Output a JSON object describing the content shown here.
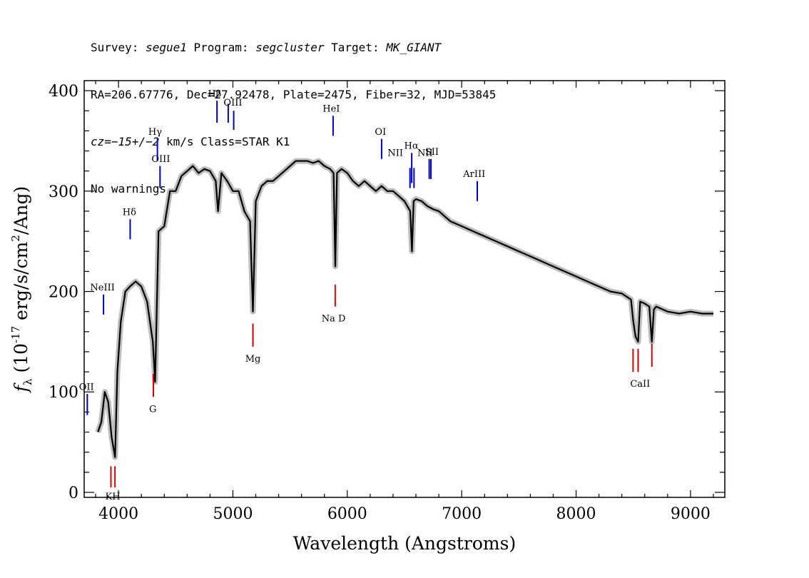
{
  "header": {
    "line1_parts": [
      "Survey: ",
      "segue1",
      " Program: ",
      "segcluster",
      " Target: ",
      "MK_GIANT"
    ],
    "line2": "RA=206.67776, Dec=27.92478, Plate=2475, Fiber=32, MJD=53845",
    "line3_parts": [
      "cz=",
      "−15+/−2",
      " km/s Class=STAR K1"
    ],
    "line4": "No warnings."
  },
  "chart_data": {
    "type": "line",
    "xlabel": "Wavelength (Angstroms)",
    "ylabel": "f_λ (10^-17 erg/s/cm^2/Ang)",
    "xlim": [
      3700,
      9300
    ],
    "ylim": [
      -5,
      410
    ],
    "x_ticks": [
      4000,
      5000,
      6000,
      7000,
      8000,
      9000
    ],
    "y_ticks": [
      0,
      100,
      200,
      300,
      400
    ],
    "x_minor_step": 200,
    "y_minor_step": 20,
    "colors": {
      "spectrum": "#000000",
      "error_band": "#bdbdbd",
      "emission": "#0000cc",
      "absorption": "#dd0000"
    },
    "series": [
      {
        "x": [
          3820,
          3850,
          3880,
          3910,
          3940,
          3955,
          3970,
          3990,
          4020,
          4060,
          4100,
          4150,
          4200,
          4250,
          4300,
          4320,
          4350,
          4400,
          4450,
          4500,
          4550,
          4600,
          4650,
          4700,
          4750,
          4800,
          4850,
          4870,
          4900,
          4950,
          5000,
          5050,
          5100,
          5150,
          5175,
          5200,
          5250,
          5300,
          5350,
          5400,
          5450,
          5500,
          5550,
          5600,
          5650,
          5700,
          5750,
          5800,
          5850,
          5880,
          5895,
          5910,
          5950,
          6000,
          6050,
          6100,
          6150,
          6200,
          6250,
          6300,
          6350,
          6400,
          6450,
          6500,
          6550,
          6565,
          6580,
          6600,
          6650,
          6700,
          6750,
          6800,
          6900,
          7000,
          7100,
          7200,
          7300,
          7400,
          7500,
          7600,
          7700,
          7800,
          7900,
          8000,
          8100,
          8200,
          8300,
          8400,
          8480,
          8500,
          8520,
          8542,
          8560,
          8600,
          8640,
          8662,
          8680,
          8700,
          8800,
          8900,
          9000,
          9100,
          9200
        ],
        "y": [
          60,
          70,
          100,
          90,
          55,
          45,
          35,
          120,
          170,
          200,
          205,
          210,
          205,
          190,
          150,
          110,
          260,
          265,
          300,
          300,
          315,
          320,
          325,
          318,
          322,
          320,
          310,
          280,
          318,
          310,
          300,
          300,
          280,
          270,
          180,
          290,
          305,
          310,
          310,
          315,
          320,
          325,
          330,
          330,
          330,
          328,
          330,
          325,
          322,
          318,
          225,
          318,
          322,
          318,
          310,
          305,
          310,
          305,
          300,
          305,
          300,
          300,
          295,
          290,
          280,
          240,
          290,
          292,
          290,
          285,
          282,
          280,
          270,
          265,
          260,
          255,
          250,
          245,
          240,
          235,
          230,
          225,
          220,
          215,
          210,
          205,
          200,
          198,
          192,
          170,
          155,
          150,
          190,
          188,
          185,
          150,
          182,
          185,
          180,
          178,
          180,
          178,
          178
        ]
      }
    ],
    "emission_lines": [
      {
        "label": "OII",
        "x": 3727,
        "y0": 77,
        "y1": 98
      },
      {
        "label": "NeIII",
        "x": 3869,
        "y0": 177,
        "y1": 197
      },
      {
        "label": "Hδ",
        "x": 4102,
        "y0": 252,
        "y1": 272
      },
      {
        "label": "Hγ",
        "x": 4340,
        "y0": 330,
        "y1": 352
      },
      {
        "label": "OIII",
        "x": 4363,
        "y0": 303,
        "y1": 325
      },
      {
        "label": "Hβ",
        "x": 4861,
        "y0": 368,
        "y1": 390
      },
      {
        "label": "OIII",
        "x": 4959,
        "y0": 368,
        "y1": 387
      },
      {
        "label": "OIII",
        "x": 5007,
        "y0": 361,
        "y1": 380
      },
      {
        "label": "HeI",
        "x": 5876,
        "y0": 355,
        "y1": 375
      },
      {
        "label": "OI",
        "x": 6300,
        "y0": 332,
        "y1": 352
      },
      {
        "label": "NII",
        "x": 6548,
        "y0": 303,
        "y1": 323
      },
      {
        "label": "Hα",
        "x": 6563,
        "y0": 308,
        "y1": 338
      },
      {
        "label": "NII",
        "x": 6583,
        "y0": 303,
        "y1": 323
      },
      {
        "label": "SII",
        "x": 6716,
        "y0": 312,
        "y1": 332
      },
      {
        "label": "SII",
        "x": 6731,
        "y0": 312,
        "y1": 332
      },
      {
        "label": "ArIII",
        "x": 7136,
        "y0": 290,
        "y1": 310
      }
    ],
    "absorption_lines": [
      {
        "label": "K",
        "x": 3934,
        "y0": 5,
        "y1": 26
      },
      {
        "label": "H",
        "x": 3969,
        "y0": 5,
        "y1": 26
      },
      {
        "label": "G",
        "x": 4305,
        "y0": 95,
        "y1": 118
      },
      {
        "label": "Mg",
        "x": 5175,
        "y0": 145,
        "y1": 168
      },
      {
        "label": "Na D",
        "x": 5894,
        "y0": 185,
        "y1": 207
      },
      {
        "label": "CaII",
        "x": 8498,
        "y0": 120,
        "y1": 143
      },
      {
        "label": "CaII",
        "x": 8542,
        "y0": 120,
        "y1": 143
      },
      {
        "label": "CaII",
        "x": 8662,
        "y0": 125,
        "y1": 148
      }
    ],
    "annotation_labels": [
      {
        "text": "OII",
        "x": 3720,
        "y": 102,
        "color": "emission"
      },
      {
        "text": "NeIII",
        "x": 3860,
        "y": 201,
        "color": "emission"
      },
      {
        "text": "Hδ",
        "x": 4095,
        "y": 276,
        "color": "emission"
      },
      {
        "text": "Hγ",
        "x": 4320,
        "y": 356,
        "color": "emission"
      },
      {
        "text": "OIII",
        "x": 4370,
        "y": 329,
        "color": "emission"
      },
      {
        "text": "Hβ",
        "x": 4840,
        "y": 394,
        "color": "emission"
      },
      {
        "text": "OIII",
        "x": 5000,
        "y": 385,
        "color": "emission"
      },
      {
        "text": "HeI",
        "x": 5860,
        "y": 379,
        "color": "emission"
      },
      {
        "text": "OI",
        "x": 6290,
        "y": 356,
        "color": "emission"
      },
      {
        "text": "NII",
        "x": 6420,
        "y": 335,
        "color": "emission"
      },
      {
        "text": "Hα",
        "x": 6560,
        "y": 342,
        "color": "emission"
      },
      {
        "text": "NII",
        "x": 6680,
        "y": 335,
        "color": "emission"
      },
      {
        "text": "SII",
        "x": 6740,
        "y": 336,
        "color": "emission"
      },
      {
        "text": "ArIII",
        "x": 7110,
        "y": 314,
        "color": "emission"
      },
      {
        "text": "KH",
        "x": 3950,
        "y": -7,
        "color": "absorption"
      },
      {
        "text": "G",
        "x": 4300,
        "y": 80,
        "color": "absorption"
      },
      {
        "text": "Mg",
        "x": 5175,
        "y": 130,
        "color": "absorption"
      },
      {
        "text": "Na D",
        "x": 5880,
        "y": 170,
        "color": "absorption"
      },
      {
        "text": "CaII",
        "x": 8560,
        "y": 105,
        "color": "absorption"
      }
    ]
  }
}
